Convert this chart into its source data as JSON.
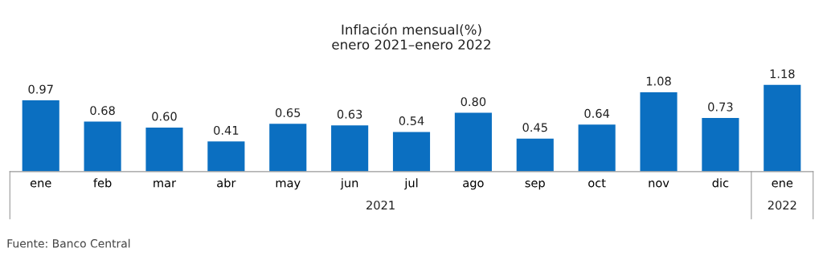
{
  "chart_data": {
    "type": "bar",
    "title": "Inflación mensual(%)\nenero 2021–enero 2022",
    "categories": [
      "ene",
      "feb",
      "mar",
      "abr",
      "may",
      "jun",
      "jul",
      "ago",
      "sep",
      "oct",
      "nov",
      "dic",
      "ene"
    ],
    "values": [
      0.97,
      0.68,
      0.6,
      0.41,
      0.65,
      0.63,
      0.54,
      0.8,
      0.45,
      0.64,
      1.08,
      0.73,
      1.18
    ],
    "value_labels": [
      "0.97",
      "0.68",
      "0.60",
      "0.41",
      "0.65",
      "0.63",
      "0.54",
      "0.80",
      "0.45",
      "0.64",
      "1.08",
      "0.73",
      "1.18"
    ],
    "color": "#0b6fc1",
    "annotations": [
      "2021",
      "2022",
      "Fuente: Banco Central"
    ],
    "grid": false,
    "legend": false
  }
}
